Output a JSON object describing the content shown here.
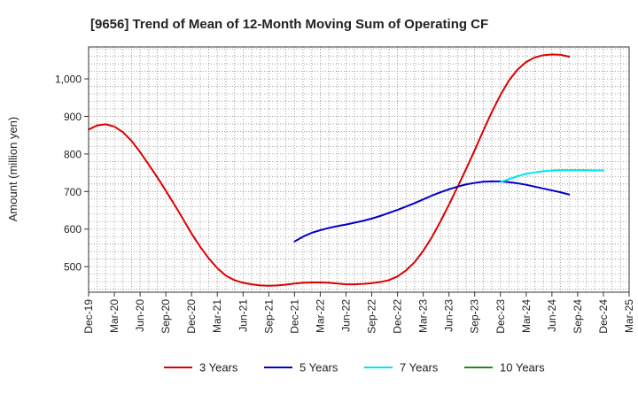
{
  "chart_data": {
    "type": "line",
    "title": "[9656]  Trend of Mean of 12-Month Moving Sum of Operating CF",
    "xlabel": "",
    "ylabel": "Amount (million yen)",
    "ylim": [
      432,
      1085
    ],
    "yticks": [
      500,
      600,
      700,
      800,
      900,
      1000
    ],
    "ytick_labels": [
      "500",
      "600",
      "700",
      "800",
      "900",
      "1,000"
    ],
    "x_tick_labels": [
      "Dec-19",
      "Mar-20",
      "Jun-20",
      "Sep-20",
      "Dec-20",
      "Mar-21",
      "Jun-21",
      "Sep-21",
      "Dec-21",
      "Mar-22",
      "Jun-22",
      "Sep-22",
      "Dec-22",
      "Mar-23",
      "Jun-23",
      "Sep-23",
      "Dec-23",
      "Mar-24",
      "Jun-24",
      "Sep-24",
      "Dec-24",
      "Mar-25"
    ],
    "grid": true,
    "legend_position": "bottom",
    "series": [
      {
        "name": "3 Years",
        "color": "#dd0000",
        "start_month_index": 0,
        "values": [
          865,
          876,
          879,
          873,
          858,
          835,
          805,
          772,
          738,
          702,
          665,
          627,
          588,
          553,
          522,
          496,
          476,
          464,
          457,
          453,
          450,
          449,
          450,
          452,
          455,
          457,
          458,
          458,
          457,
          455,
          453,
          453,
          454,
          456,
          459,
          464,
          474,
          490,
          512,
          542,
          578,
          620,
          665,
          712,
          760,
          810,
          862,
          912,
          957,
          996,
          1025,
          1045,
          1057,
          1063,
          1065,
          1064,
          1059
        ]
      },
      {
        "name": "5 Years",
        "color": "#0000cc",
        "start_month_index": 24,
        "values": [
          567,
          580,
          590,
          597,
          603,
          608,
          612,
          617,
          622,
          628,
          635,
          643,
          651,
          660,
          669,
          679,
          689,
          698,
          706,
          713,
          719,
          723,
          726,
          727,
          727,
          725,
          722,
          718,
          713,
          708,
          703,
          698,
          692
        ]
      },
      {
        "name": "7 Years",
        "color": "#00e5ee",
        "start_month_index": 48,
        "values": [
          725,
          733,
          741,
          747,
          751,
          754,
          756,
          757,
          757,
          757,
          757,
          756,
          756
        ]
      },
      {
        "name": "10 Years",
        "color": "#228b22",
        "start_month_index": 0,
        "values": []
      }
    ]
  }
}
